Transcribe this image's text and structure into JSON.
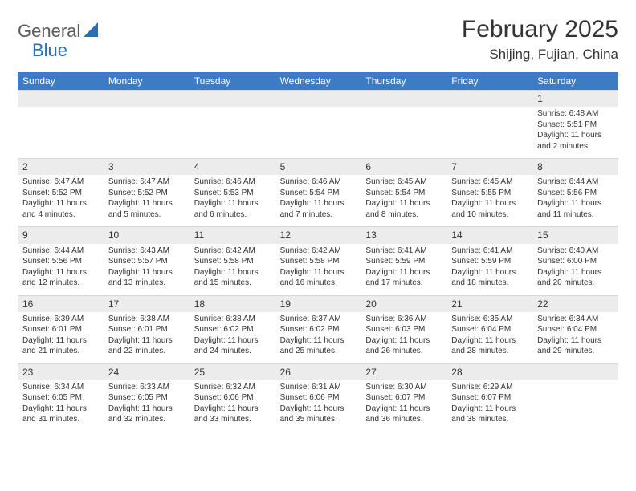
{
  "logo": {
    "part1": "General",
    "part2": "Blue"
  },
  "title": "February 2025",
  "location": "Shijing, Fujian, China",
  "colors": {
    "header_bg": "#3b7cc4",
    "header_text": "#ffffff",
    "daynum_bg": "#ececec",
    "logo_gray": "#5a5a5a",
    "logo_blue": "#2a6db8"
  },
  "dayNames": [
    "Sunday",
    "Monday",
    "Tuesday",
    "Wednesday",
    "Thursday",
    "Friday",
    "Saturday"
  ],
  "weeks": [
    [
      {
        "n": "",
        "sr": "",
        "ss": "",
        "dl": ""
      },
      {
        "n": "",
        "sr": "",
        "ss": "",
        "dl": ""
      },
      {
        "n": "",
        "sr": "",
        "ss": "",
        "dl": ""
      },
      {
        "n": "",
        "sr": "",
        "ss": "",
        "dl": ""
      },
      {
        "n": "",
        "sr": "",
        "ss": "",
        "dl": ""
      },
      {
        "n": "",
        "sr": "",
        "ss": "",
        "dl": ""
      },
      {
        "n": "1",
        "sr": "Sunrise: 6:48 AM",
        "ss": "Sunset: 5:51 PM",
        "dl": "Daylight: 11 hours and 2 minutes."
      }
    ],
    [
      {
        "n": "2",
        "sr": "Sunrise: 6:47 AM",
        "ss": "Sunset: 5:52 PM",
        "dl": "Daylight: 11 hours and 4 minutes."
      },
      {
        "n": "3",
        "sr": "Sunrise: 6:47 AM",
        "ss": "Sunset: 5:52 PM",
        "dl": "Daylight: 11 hours and 5 minutes."
      },
      {
        "n": "4",
        "sr": "Sunrise: 6:46 AM",
        "ss": "Sunset: 5:53 PM",
        "dl": "Daylight: 11 hours and 6 minutes."
      },
      {
        "n": "5",
        "sr": "Sunrise: 6:46 AM",
        "ss": "Sunset: 5:54 PM",
        "dl": "Daylight: 11 hours and 7 minutes."
      },
      {
        "n": "6",
        "sr": "Sunrise: 6:45 AM",
        "ss": "Sunset: 5:54 PM",
        "dl": "Daylight: 11 hours and 8 minutes."
      },
      {
        "n": "7",
        "sr": "Sunrise: 6:45 AM",
        "ss": "Sunset: 5:55 PM",
        "dl": "Daylight: 11 hours and 10 minutes."
      },
      {
        "n": "8",
        "sr": "Sunrise: 6:44 AM",
        "ss": "Sunset: 5:56 PM",
        "dl": "Daylight: 11 hours and 11 minutes."
      }
    ],
    [
      {
        "n": "9",
        "sr": "Sunrise: 6:44 AM",
        "ss": "Sunset: 5:56 PM",
        "dl": "Daylight: 11 hours and 12 minutes."
      },
      {
        "n": "10",
        "sr": "Sunrise: 6:43 AM",
        "ss": "Sunset: 5:57 PM",
        "dl": "Daylight: 11 hours and 13 minutes."
      },
      {
        "n": "11",
        "sr": "Sunrise: 6:42 AM",
        "ss": "Sunset: 5:58 PM",
        "dl": "Daylight: 11 hours and 15 minutes."
      },
      {
        "n": "12",
        "sr": "Sunrise: 6:42 AM",
        "ss": "Sunset: 5:58 PM",
        "dl": "Daylight: 11 hours and 16 minutes."
      },
      {
        "n": "13",
        "sr": "Sunrise: 6:41 AM",
        "ss": "Sunset: 5:59 PM",
        "dl": "Daylight: 11 hours and 17 minutes."
      },
      {
        "n": "14",
        "sr": "Sunrise: 6:41 AM",
        "ss": "Sunset: 5:59 PM",
        "dl": "Daylight: 11 hours and 18 minutes."
      },
      {
        "n": "15",
        "sr": "Sunrise: 6:40 AM",
        "ss": "Sunset: 6:00 PM",
        "dl": "Daylight: 11 hours and 20 minutes."
      }
    ],
    [
      {
        "n": "16",
        "sr": "Sunrise: 6:39 AM",
        "ss": "Sunset: 6:01 PM",
        "dl": "Daylight: 11 hours and 21 minutes."
      },
      {
        "n": "17",
        "sr": "Sunrise: 6:38 AM",
        "ss": "Sunset: 6:01 PM",
        "dl": "Daylight: 11 hours and 22 minutes."
      },
      {
        "n": "18",
        "sr": "Sunrise: 6:38 AM",
        "ss": "Sunset: 6:02 PM",
        "dl": "Daylight: 11 hours and 24 minutes."
      },
      {
        "n": "19",
        "sr": "Sunrise: 6:37 AM",
        "ss": "Sunset: 6:02 PM",
        "dl": "Daylight: 11 hours and 25 minutes."
      },
      {
        "n": "20",
        "sr": "Sunrise: 6:36 AM",
        "ss": "Sunset: 6:03 PM",
        "dl": "Daylight: 11 hours and 26 minutes."
      },
      {
        "n": "21",
        "sr": "Sunrise: 6:35 AM",
        "ss": "Sunset: 6:04 PM",
        "dl": "Daylight: 11 hours and 28 minutes."
      },
      {
        "n": "22",
        "sr": "Sunrise: 6:34 AM",
        "ss": "Sunset: 6:04 PM",
        "dl": "Daylight: 11 hours and 29 minutes."
      }
    ],
    [
      {
        "n": "23",
        "sr": "Sunrise: 6:34 AM",
        "ss": "Sunset: 6:05 PM",
        "dl": "Daylight: 11 hours and 31 minutes."
      },
      {
        "n": "24",
        "sr": "Sunrise: 6:33 AM",
        "ss": "Sunset: 6:05 PM",
        "dl": "Daylight: 11 hours and 32 minutes."
      },
      {
        "n": "25",
        "sr": "Sunrise: 6:32 AM",
        "ss": "Sunset: 6:06 PM",
        "dl": "Daylight: 11 hours and 33 minutes."
      },
      {
        "n": "26",
        "sr": "Sunrise: 6:31 AM",
        "ss": "Sunset: 6:06 PM",
        "dl": "Daylight: 11 hours and 35 minutes."
      },
      {
        "n": "27",
        "sr": "Sunrise: 6:30 AM",
        "ss": "Sunset: 6:07 PM",
        "dl": "Daylight: 11 hours and 36 minutes."
      },
      {
        "n": "28",
        "sr": "Sunrise: 6:29 AM",
        "ss": "Sunset: 6:07 PM",
        "dl": "Daylight: 11 hours and 38 minutes."
      },
      {
        "n": "",
        "sr": "",
        "ss": "",
        "dl": ""
      }
    ]
  ]
}
